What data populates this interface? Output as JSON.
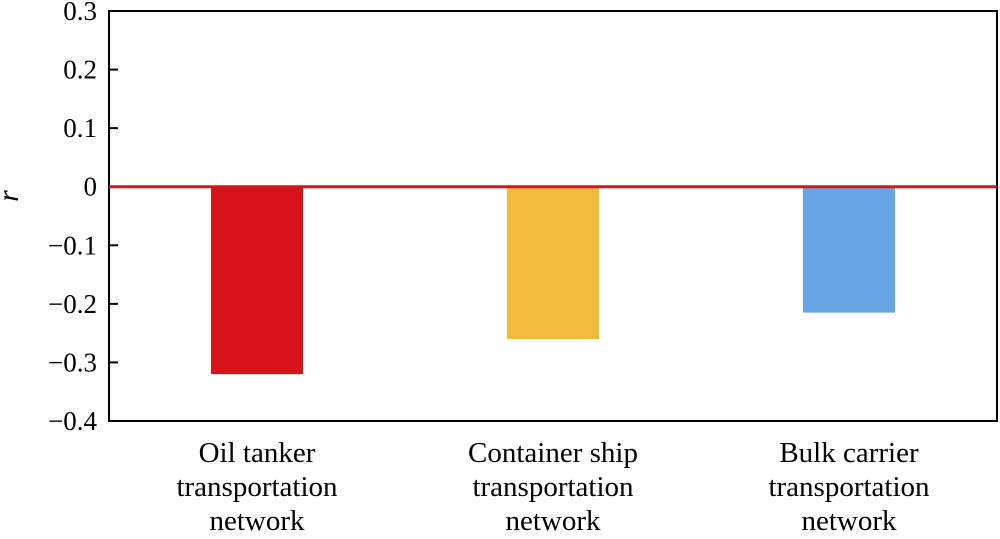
{
  "chart_data": {
    "type": "bar",
    "categories": [
      [
        "Oil tanker",
        "transportation",
        "network"
      ],
      [
        "Container ship",
        "transportation",
        "network"
      ],
      [
        "Bulk carrier",
        "transportation",
        "network"
      ]
    ],
    "values": [
      -0.32,
      -0.26,
      -0.215
    ],
    "colors": [
      "#d7141a",
      "#f0bb3c",
      "#66a6e4"
    ],
    "ylabel": "r",
    "ylim": [
      -0.4,
      0.3
    ],
    "yticks": [
      0.3,
      0.2,
      0.1,
      0,
      -0.1,
      -0.2,
      -0.3,
      -0.4
    ],
    "ytick_labels": [
      "0.3",
      "0.2",
      "0.1",
      "0",
      "−0.1",
      "−0.2",
      "−0.3",
      "−0.4"
    ],
    "reference_line": {
      "y": 0,
      "color": "#d7141a"
    },
    "grid": false
  }
}
